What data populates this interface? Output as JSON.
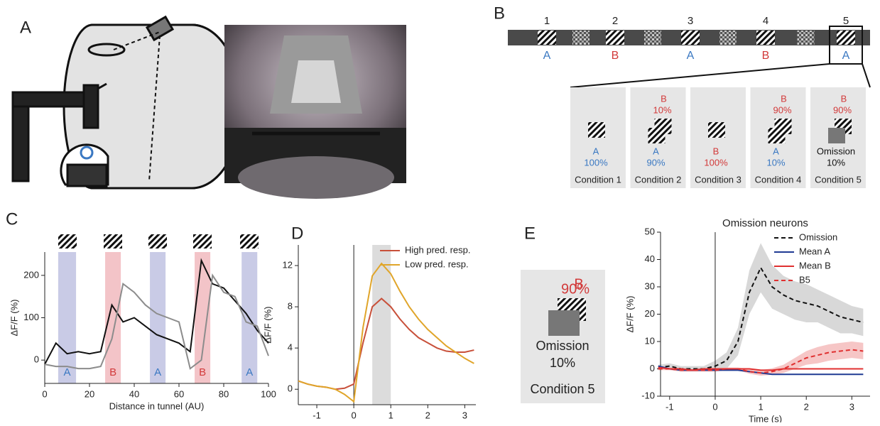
{
  "panel_labels": [
    "A",
    "B",
    "C",
    "D",
    "E"
  ],
  "panel_b": {
    "positions": [
      "1",
      "2",
      "3",
      "4",
      "5"
    ],
    "stimuli": [
      "A",
      "B",
      "A",
      "B",
      "A"
    ],
    "colors": {
      "A": "#3a78c2",
      "B": "#d23a3a"
    },
    "conditions": [
      {
        "top": null,
        "top_pct": null,
        "bottom": "A",
        "bottom_pct": "100%",
        "caption": "Condition 1"
      },
      {
        "top": "B",
        "top_pct": "10%",
        "bottom": "A",
        "bottom_pct": "90%",
        "caption": "Condition 2"
      },
      {
        "top": null,
        "top_pct": null,
        "bottom": "B",
        "bottom_pct": "100%",
        "caption": "Condition 3"
      },
      {
        "top": "B",
        "top_pct": "90%",
        "bottom": "A",
        "bottom_pct": "10%",
        "caption": "Condition 4"
      },
      {
        "top": "B",
        "top_pct": "90%",
        "bottom": "Omission",
        "bottom_pct": "10%",
        "caption": "Condition 5"
      }
    ]
  },
  "panel_e_condition": {
    "top": "B",
    "top_pct": "90%",
    "bottom": "Omission",
    "bottom_pct": "10%",
    "caption": "Condition 5"
  },
  "chart_data": [
    {
      "type": "line",
      "xlabel": "Distance in tunnel (AU)",
      "ylabel": "ΔF/F (%)",
      "xlim": [
        0,
        100
      ],
      "ylim": [
        -55,
        255
      ],
      "xticks": [
        0,
        20,
        40,
        60,
        80,
        100
      ],
      "yticks": [
        0,
        100,
        200
      ],
      "regions": [
        {
          "x": [
            6,
            14
          ],
          "label": "A",
          "color": "#c9cbe6"
        },
        {
          "x": [
            27,
            34
          ],
          "label": "B",
          "color": "#f3c4c8"
        },
        {
          "x": [
            47,
            54
          ],
          "label": "A",
          "color": "#c9cbe6"
        },
        {
          "x": [
            67,
            74
          ],
          "label": "B",
          "color": "#f3c4c8"
        },
        {
          "x": [
            88,
            95
          ],
          "label": "A",
          "color": "#c9cbe6"
        }
      ],
      "x": [
        0,
        5,
        10,
        15,
        20,
        25,
        30,
        35,
        40,
        45,
        50,
        55,
        60,
        65,
        70,
        75,
        80,
        85,
        90,
        95,
        100
      ],
      "series": [
        {
          "color": "#111111",
          "values": [
            -10,
            40,
            15,
            20,
            15,
            20,
            130,
            90,
            100,
            80,
            60,
            50,
            40,
            20,
            235,
            180,
            170,
            140,
            110,
            70,
            40
          ]
        },
        {
          "color": "#8c8c8c",
          "values": [
            -10,
            -15,
            -15,
            -20,
            -20,
            -15,
            50,
            180,
            160,
            130,
            110,
            100,
            90,
            -20,
            0,
            200,
            160,
            150,
            90,
            80,
            10
          ]
        }
      ]
    },
    {
      "type": "line",
      "xlabel": "Time (s)",
      "ylabel": "ΔF/F (%)",
      "legend": "upper right",
      "xlim": [
        -1.5,
        3.3
      ],
      "ylim": [
        -1.5,
        14
      ],
      "xticks": [
        -1,
        0,
        1,
        2,
        3
      ],
      "yticks": [
        0,
        4,
        8,
        12
      ],
      "vline": 0,
      "regions": [
        {
          "x": [
            0.5,
            1
          ],
          "color": "#dcdcdc"
        }
      ],
      "x": [
        -1.5,
        -1.25,
        -1,
        -0.75,
        -0.5,
        -0.25,
        0,
        0.25,
        0.5,
        0.75,
        1,
        1.25,
        1.5,
        1.75,
        2,
        2.25,
        2.5,
        2.75,
        3,
        3.25
      ],
      "series": [
        {
          "name": "High pred. resp.",
          "color": "#c8503a",
          "values": [
            0.8,
            0.5,
            0.3,
            0.2,
            0,
            0.1,
            0.5,
            4.5,
            8,
            8.8,
            8,
            6.8,
            5.8,
            5,
            4.5,
            4,
            3.7,
            3.6,
            3.6,
            3.8
          ]
        },
        {
          "name": "Low pred. resp.",
          "color": "#e0a52a",
          "values": [
            0.8,
            0.5,
            0.3,
            0.2,
            0,
            -0.5,
            -1.2,
            6,
            11,
            12.2,
            11.2,
            9.5,
            8,
            6.8,
            5.8,
            5,
            4.2,
            3.6,
            3,
            2.5
          ]
        }
      ]
    },
    {
      "type": "line",
      "title": "Omission neurons",
      "xlabel": "Time (s)",
      "ylabel": "ΔF/F (%)",
      "legend": "upper right",
      "xlim": [
        -1.2,
        3.4
      ],
      "ylim": [
        -10,
        50
      ],
      "xticks": [
        -1,
        0,
        1,
        2,
        3
      ],
      "yticks": [
        -10,
        0,
        10,
        20,
        30,
        40,
        50
      ],
      "vline": 0,
      "x": [
        -1.25,
        -1,
        -0.75,
        -0.5,
        -0.25,
        0,
        0.25,
        0.5,
        0.75,
        1,
        1.25,
        1.5,
        1.75,
        2,
        2.25,
        2.5,
        2.75,
        3,
        3.25
      ],
      "series": [
        {
          "name": "Omission",
          "color": "#111111",
          "dash": true,
          "band_color": "#d8d8d8",
          "values": [
            0.5,
            1,
            0,
            0,
            0,
            1,
            3,
            10,
            28,
            37,
            30,
            27,
            25,
            24,
            23,
            21,
            19,
            18,
            17
          ],
          "error": [
            1,
            1,
            1,
            1,
            1,
            2,
            3,
            5,
            8,
            9,
            8,
            7,
            7,
            7,
            6,
            6,
            6,
            5,
            5
          ]
        },
        {
          "name": "Mean A",
          "color": "#1f3a93",
          "dash": false,
          "values": [
            1,
            0,
            -0.5,
            -0.5,
            -0.5,
            -0.5,
            -0.5,
            -0.5,
            -1,
            -1.5,
            -2,
            -2,
            -2,
            -2,
            -2,
            -2,
            -2,
            -2,
            -2
          ]
        },
        {
          "name": "Mean B",
          "color": "#e03030",
          "dash": false,
          "values": [
            0.5,
            0,
            0,
            -0.5,
            0,
            0,
            0,
            0,
            0,
            -0.5,
            -0.5,
            0,
            0,
            0,
            0,
            0,
            0,
            0,
            0
          ]
        },
        {
          "name": "B5",
          "color": "#e03030",
          "dash": true,
          "band_color": "#f6c6c6",
          "values": [
            0,
            0,
            -0.5,
            -0.5,
            -0.5,
            -0.5,
            0,
            0,
            -1,
            -1.5,
            -1,
            0,
            2,
            4,
            5,
            6,
            6.5,
            7,
            6.5
          ],
          "error": [
            0.5,
            0.5,
            0.5,
            0.5,
            0.5,
            0.5,
            0.5,
            0.5,
            0.8,
            1,
            1.2,
            1.5,
            2,
            2.5,
            3,
            3,
            3,
            3,
            3
          ]
        }
      ]
    }
  ]
}
